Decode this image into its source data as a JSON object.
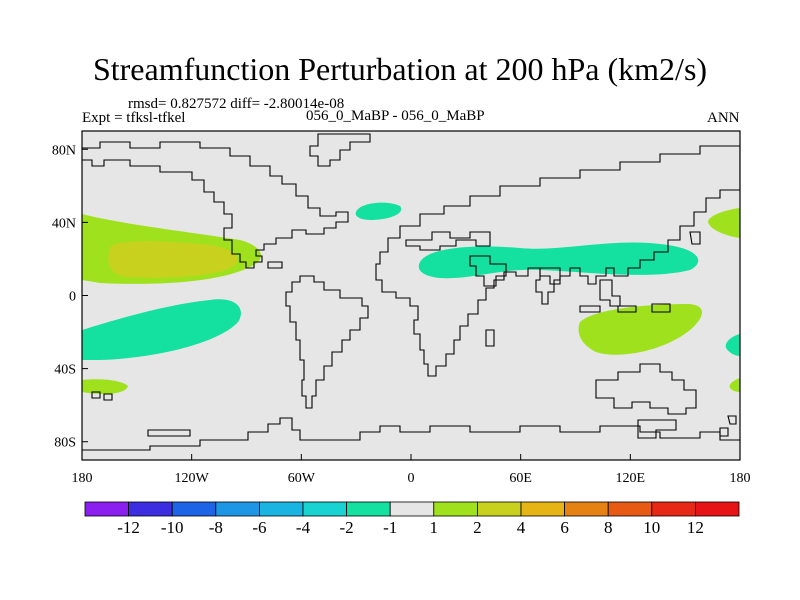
{
  "title": "Streamfunction Perturbation at 200 hPa (km2/s)",
  "stats": "rmsd= 0.827572 diff= -2.80014e-08",
  "experiment": "Expt = tfksl-tfkel",
  "case_label": "056_0_MaBP - 056_0_MaBP",
  "season": "ANN",
  "y_axis_labels": [
    "80N",
    "40N",
    "0",
    "40S",
    "80S"
  ],
  "x_axis_labels": [
    "180",
    "120W",
    "60W",
    "0",
    "60E",
    "120E",
    "180"
  ],
  "colorbar": {
    "labels": [
      "-12",
      "-10",
      "-8",
      "-6",
      "-4",
      "-2",
      "-1",
      "1",
      "2",
      "4",
      "6",
      "8",
      "10",
      "12"
    ],
    "colors": [
      "#8a1ff0",
      "#3c2ee0",
      "#1e64e6",
      "#1e96e6",
      "#19b4e1",
      "#19d2d2",
      "#14e1a0",
      "#e6e6e6",
      "#a0e11e",
      "#c8d21e",
      "#e6b414",
      "#e68214",
      "#e65a14",
      "#e62814",
      "#e61414"
    ]
  },
  "chart_data": {
    "type": "heatmap",
    "title": "Streamfunction Perturbation at 200 hPa (km2/s)",
    "x_range_lon": [
      -180,
      180
    ],
    "y_range_lat": [
      -90,
      90
    ],
    "contour_levels": [
      -12,
      -10,
      -8,
      -6,
      -4,
      -2,
      -1,
      1,
      2,
      4,
      6,
      8,
      10,
      12
    ],
    "regions": [
      {
        "name": "north-pacific-positive",
        "level": "1 to 2",
        "lon": [
          -180,
          -95
        ],
        "lat": [
          15,
          42
        ]
      },
      {
        "name": "north-pacific-core",
        "level": "2 to 4",
        "lon": [
          -165,
          -110
        ],
        "lat": [
          20,
          34
        ]
      },
      {
        "name": "south-pacific-negative",
        "level": "-2 to -1",
        "lon": [
          -180,
          -90
        ],
        "lat": [
          -38,
          -8
        ]
      },
      {
        "name": "south-pacific-positive",
        "level": "1 to 2",
        "lon": [
          -180,
          -150
        ],
        "lat": [
          -55,
          -47
        ]
      },
      {
        "name": "north-atlantic-negative",
        "level": "-2 to -1",
        "lon": [
          -32,
          -2
        ],
        "lat": [
          43,
          55
        ]
      },
      {
        "name": "asia-negative",
        "level": "-2 to -1",
        "lon": [
          5,
          160
        ],
        "lat": [
          10,
          35
        ]
      },
      {
        "name": "indian-ocean-positive",
        "level": "1 to 2",
        "lon": [
          93,
          165
        ],
        "lat": [
          -28,
          -5
        ]
      },
      {
        "name": "east-edge-north-positive",
        "level": "1 to 2",
        "lon": [
          168,
          180
        ],
        "lat": [
          35,
          48
        ]
      },
      {
        "name": "east-edge-south-negative",
        "level": "-2 to -1",
        "lon": [
          172,
          180
        ],
        "lat": [
          -35,
          -23
        ]
      },
      {
        "name": "east-edge-south-positive",
        "level": "1 to 2",
        "lon": [
          172,
          180
        ],
        "lat": [
          -57,
          -48
        ]
      }
    ]
  }
}
